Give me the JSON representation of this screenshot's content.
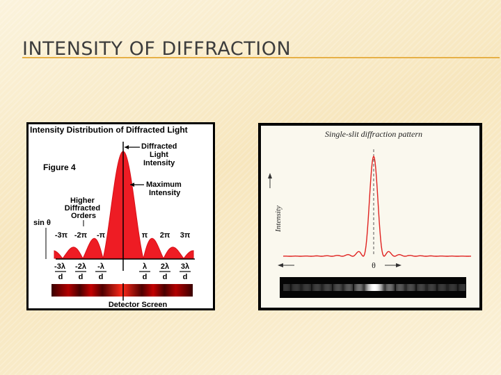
{
  "slide": {
    "title": "INTENSITY OF DIFFRACTION"
  },
  "left_figure": {
    "title": "Intensity Distribution of Diffracted Light",
    "figure_label": "Figure 4",
    "label_diffracted_intensity": [
      "Diffracted",
      "Light",
      "Intensity"
    ],
    "label_max_intensity": [
      "Maximum",
      "Intensity"
    ],
    "label_higher_orders": [
      "Higher",
      "Diffracted",
      "Orders"
    ],
    "label_sin_theta": "sin θ",
    "phase_labels": [
      "-3π",
      "-2π",
      "-π",
      "π",
      "2π",
      "3π"
    ],
    "lambda_numerators": [
      "-3λ",
      "-2λ",
      "-λ",
      "λ",
      "2λ",
      "3λ"
    ],
    "lambda_denominator": "d",
    "detector_label": "Detector Screen",
    "colors": {
      "fill": "#ee1c24",
      "panel_bg": "#ffffff",
      "border": "#000000"
    }
  },
  "right_figure": {
    "title": "Single-slit diffraction pattern",
    "y_label": "Intensity",
    "x_label": "θ",
    "colors": {
      "curve": "#e0211f",
      "panel_bg": "#faf8ee",
      "border": "#000000"
    }
  }
}
